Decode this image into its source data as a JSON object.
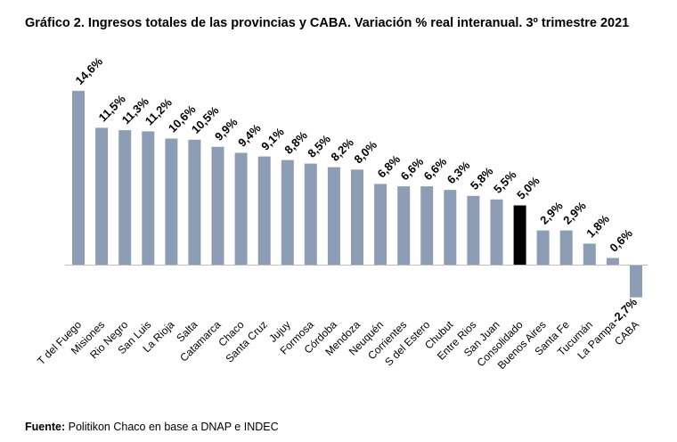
{
  "title": "Gráfico 2. Ingresos totales de las provincias y CABA. Variación % real interanual. 3º trimestre 2021",
  "source": {
    "label": "Fuente:",
    "text": "Politikon Chaco en base a DNAP e INDEC"
  },
  "colors": {
    "bar": "#8d9db5",
    "highlight": "#000000",
    "axis": "#bfbfbf"
  },
  "chart_data": {
    "type": "bar",
    "title": "Gráfico 2. Ingresos totales de las provincias y CABA. Variación % real interanual. 3º trimestre 2021",
    "xlabel": "",
    "ylabel": "",
    "ylim": [
      -3,
      15
    ],
    "grid": false,
    "highlight_category": "Consolidado",
    "categories": [
      "T del Fuego",
      "Misiones",
      "Rio Negro",
      "San Luis",
      "La Rioja",
      "Salta",
      "Catamarca",
      "Chaco",
      "Santa Cruz",
      "Jujuy",
      "Formosa",
      "Córdoba",
      "Mendoza",
      "Neuquén",
      "Corrientes",
      "S del Estero",
      "Chubut",
      "Entre Rios",
      "San Juan",
      "Consolidado",
      "Buenos Aires",
      "Santa Fe",
      "Tucumán",
      "La Pampa",
      "CABA"
    ],
    "values": [
      14.6,
      11.5,
      11.3,
      11.2,
      10.6,
      10.5,
      9.9,
      9.4,
      9.1,
      8.8,
      8.5,
      8.2,
      8.0,
      6.8,
      6.6,
      6.6,
      6.3,
      5.8,
      5.5,
      5.0,
      2.9,
      2.9,
      1.8,
      0.6,
      -2.7
    ],
    "data_labels": [
      "14,6%",
      "11,5%",
      "11,3%",
      "11,2%",
      "10,6%",
      "10,5%",
      "9,9%",
      "9,4%",
      "9,1%",
      "8,8%",
      "8,5%",
      "8,2%",
      "8,0%",
      "6,8%",
      "6,6%",
      "6,6%",
      "6,3%",
      "5,8%",
      "5,5%",
      "5,0%",
      "2,9%",
      "2,9%",
      "1,8%",
      "0,6%",
      "-2,7%"
    ]
  }
}
